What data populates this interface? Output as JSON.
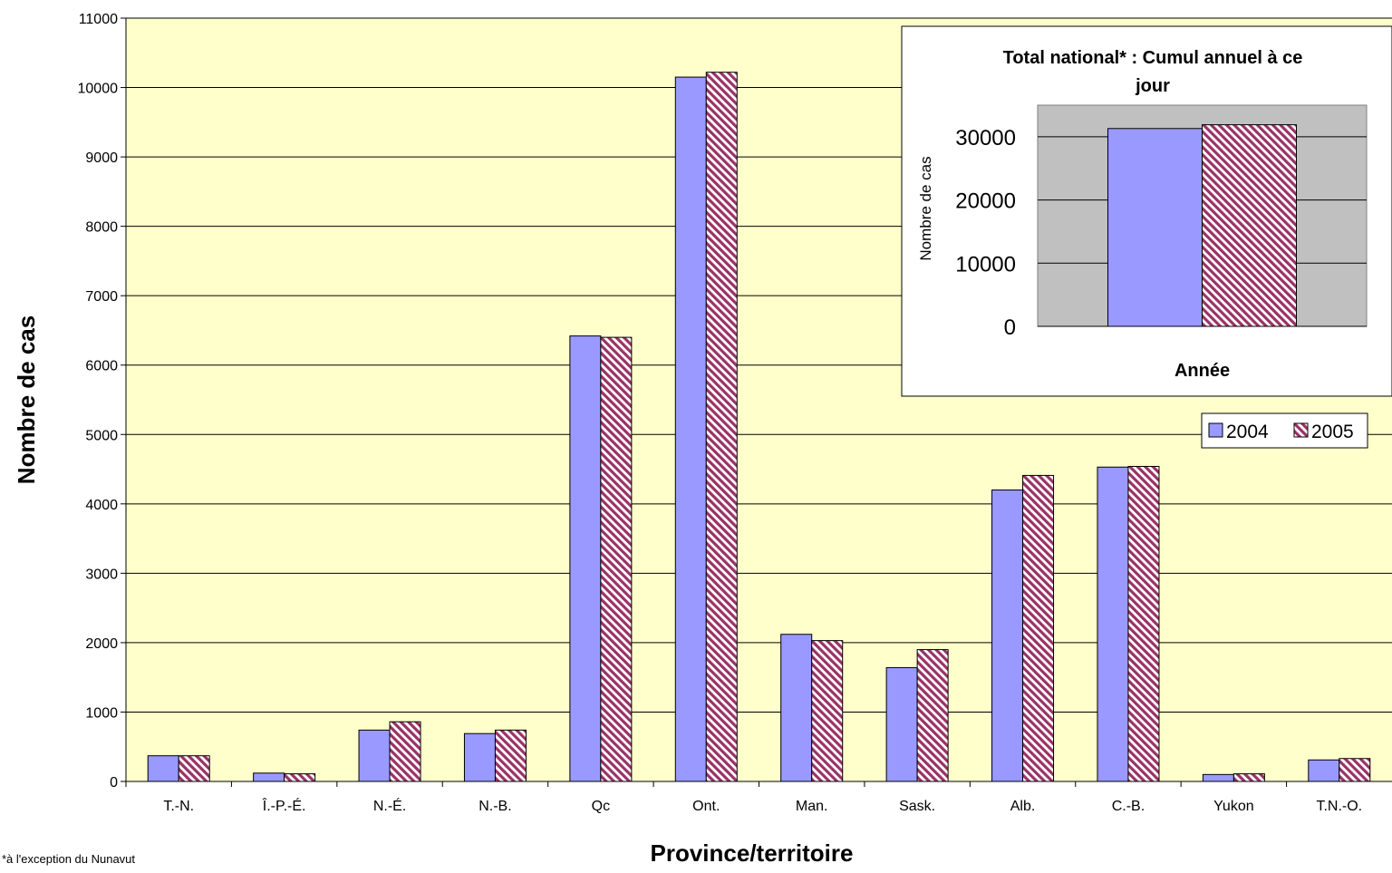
{
  "footnote": "*à l'exception du Nunavut",
  "chart_data": [
    {
      "type": "bar",
      "title": "",
      "xlabel": "Province/territoire",
      "ylabel": "Nombre de cas",
      "ylim": [
        0,
        11000
      ],
      "yticks": [
        0,
        1000,
        2000,
        3000,
        4000,
        5000,
        6000,
        7000,
        8000,
        9000,
        10000,
        11000
      ],
      "grid": true,
      "legend_position": "right",
      "categories": [
        "T.-N.",
        "Î.-P.-É.",
        "N.-É.",
        "N.-B.",
        "Qc",
        "Ont.",
        "Man.",
        "Sask.",
        "Alb.",
        "C.-B.",
        "Yukon",
        "T.N.-O."
      ],
      "series": [
        {
          "name": "2004",
          "color": "#9999ff",
          "pattern": "solid",
          "values": [
            370,
            120,
            740,
            690,
            6420,
            10150,
            2120,
            1640,
            4200,
            4530,
            100,
            310
          ]
        },
        {
          "name": "2005",
          "color": "#993366",
          "pattern": "diagonal-hatch",
          "values": [
            370,
            110,
            860,
            740,
            6400,
            10220,
            2030,
            1900,
            4410,
            4540,
            110,
            330
          ]
        }
      ],
      "plot_background": "#ffffcc"
    },
    {
      "type": "bar",
      "title": "Total national* : Cumul annuel à ce jour",
      "title_lines": [
        "Total national* : Cumul annuel à ce",
        "jour"
      ],
      "xlabel": "Année",
      "ylabel": "Nombre de cas",
      "ylim": [
        0,
        35000
      ],
      "yticks": [
        0,
        10000,
        20000,
        30000
      ],
      "grid": true,
      "categories": [
        ""
      ],
      "series": [
        {
          "name": "2004",
          "color": "#9999ff",
          "pattern": "solid",
          "values": [
            31300
          ]
        },
        {
          "name": "2005",
          "color": "#993366",
          "pattern": "diagonal-hatch",
          "values": [
            31900
          ]
        }
      ],
      "plot_background": "#c0c0c0"
    }
  ]
}
